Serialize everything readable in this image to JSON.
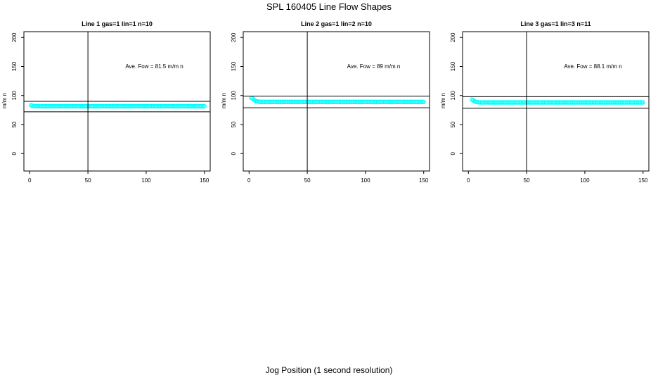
{
  "figure": {
    "title": "SPL  160405  Line Flow Shapes",
    "xlabel": "Jog Position (1 second resolution)"
  },
  "chart_data": [
    {
      "type": "scatter",
      "title": "Line 1 gas=1 lin=1 n=10",
      "ylabel": "m/m n",
      "annotation": "Ave. Fow =  81.5  m/m n",
      "xlim": [
        -5,
        155
      ],
      "ylim": [
        -30,
        210
      ],
      "xticks": [
        "0",
        "50",
        "100",
        "150"
      ],
      "yticks": [
        "0",
        "50",
        "100",
        "150",
        "200"
      ],
      "vline": 50,
      "hlines": [
        72,
        90
      ],
      "color": "#00ffff",
      "x_range": [
        1,
        150
      ],
      "series": [
        {
          "x": [
            1,
            2,
            3,
            4,
            5,
            10,
            20,
            30,
            40,
            50,
            60,
            70,
            80,
            90,
            100,
            110,
            120,
            130,
            140,
            150
          ],
          "values": [
            83.5,
            82.5,
            82,
            82,
            81.8,
            81.5,
            81.5,
            81.5,
            81.5,
            81.5,
            81.5,
            81.5,
            81.5,
            81.5,
            81.5,
            81.5,
            81.5,
            81.5,
            81.5,
            81.5
          ]
        }
      ]
    },
    {
      "type": "scatter",
      "title": "Line 2 gas=1 lin=2 n=10",
      "ylabel": "m/m n",
      "annotation": "Ave. Fow =  89  m/m n",
      "xlim": [
        -5,
        155
      ],
      "ylim": [
        -30,
        210
      ],
      "xticks": [
        "0",
        "50",
        "100",
        "150"
      ],
      "yticks": [
        "0",
        "50",
        "100",
        "150",
        "200"
      ],
      "vline": 50,
      "hlines": [
        79,
        99
      ],
      "color": "#00ffff",
      "x_range": [
        2,
        150
      ],
      "series": [
        {
          "x": [
            2,
            3,
            4,
            5,
            6,
            8,
            10,
            20,
            30,
            40,
            50,
            60,
            70,
            80,
            90,
            100,
            110,
            120,
            130,
            140,
            150
          ],
          "values": [
            96,
            95,
            93,
            91.5,
            90,
            89.5,
            89,
            89,
            89,
            89,
            89,
            89,
            89,
            89,
            89,
            89,
            89,
            89,
            89,
            89,
            89
          ]
        }
      ]
    },
    {
      "type": "scatter",
      "title": "Line 3 gas=1 lin=3 n=11",
      "ylabel": "m/m n",
      "annotation": "Ave. Fow =  88.1  m/m n",
      "xlim": [
        -5,
        155
      ],
      "ylim": [
        -30,
        210
      ],
      "xticks": [
        "0",
        "50",
        "100",
        "150"
      ],
      "yticks": [
        "0",
        "50",
        "100",
        "150",
        "200"
      ],
      "vline": 50,
      "hlines": [
        78,
        98
      ],
      "color": "#00ffff",
      "x_range": [
        3,
        150
      ],
      "series": [
        {
          "x": [
            3,
            4,
            5,
            6,
            7,
            8,
            10,
            20,
            30,
            40,
            50,
            60,
            70,
            80,
            90,
            100,
            110,
            120,
            130,
            140,
            150
          ],
          "values": [
            93,
            92,
            90.5,
            89.5,
            89,
            88.5,
            88.2,
            88.1,
            88.1,
            88.1,
            88.1,
            88.1,
            88.1,
            88.1,
            88.1,
            88.1,
            88.1,
            88.1,
            88.1,
            88.1,
            88.1
          ]
        }
      ]
    }
  ]
}
